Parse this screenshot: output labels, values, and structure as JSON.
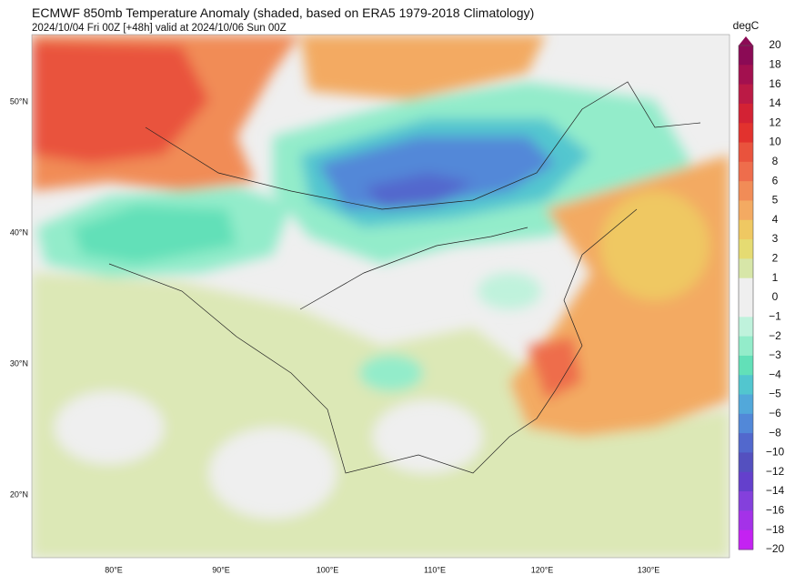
{
  "header": {
    "title": "ECMWF 850mb Temperature Anomaly (shaded, based on ERA5 1979-2018 Climatology)",
    "subtitle": "2024/10/04 Fri 00Z [+48h] valid at 2024/10/06 Sun 00Z"
  },
  "map": {
    "lat_labels": [
      "50°N",
      "40°N",
      "30°N",
      "20°N"
    ],
    "lon_labels": [
      "80°E",
      "90°E",
      "100°E",
      "110°E",
      "120°E",
      "130°E"
    ]
  },
  "colorbar": {
    "unit": "degC",
    "labels": [
      "20",
      "18",
      "16",
      "14",
      "12",
      "10",
      "8",
      "6",
      "5",
      "4",
      "3",
      "2",
      "1",
      "0",
      "−1",
      "−2",
      "−3",
      "−4",
      "−5",
      "−6",
      "−8",
      "−10",
      "−12",
      "−14",
      "−16",
      "−18",
      "−20"
    ],
    "colors": [
      "#8b0a55",
      "#a3104f",
      "#bb1a45",
      "#d32234",
      "#e2322e",
      "#e9533d",
      "#ee6d4c",
      "#f18c57",
      "#f3aa62",
      "#efc862",
      "#e5db72",
      "#d7e6a8",
      "#efefef",
      "#efefef",
      "#bff2dc",
      "#93ecca",
      "#62e0b8",
      "#52c6cf",
      "#52a8da",
      "#5288d8",
      "#5268cd",
      "#5450bf",
      "#6440cc",
      "#8440dc",
      "#a432e8",
      "#c422f2"
    ]
  }
}
